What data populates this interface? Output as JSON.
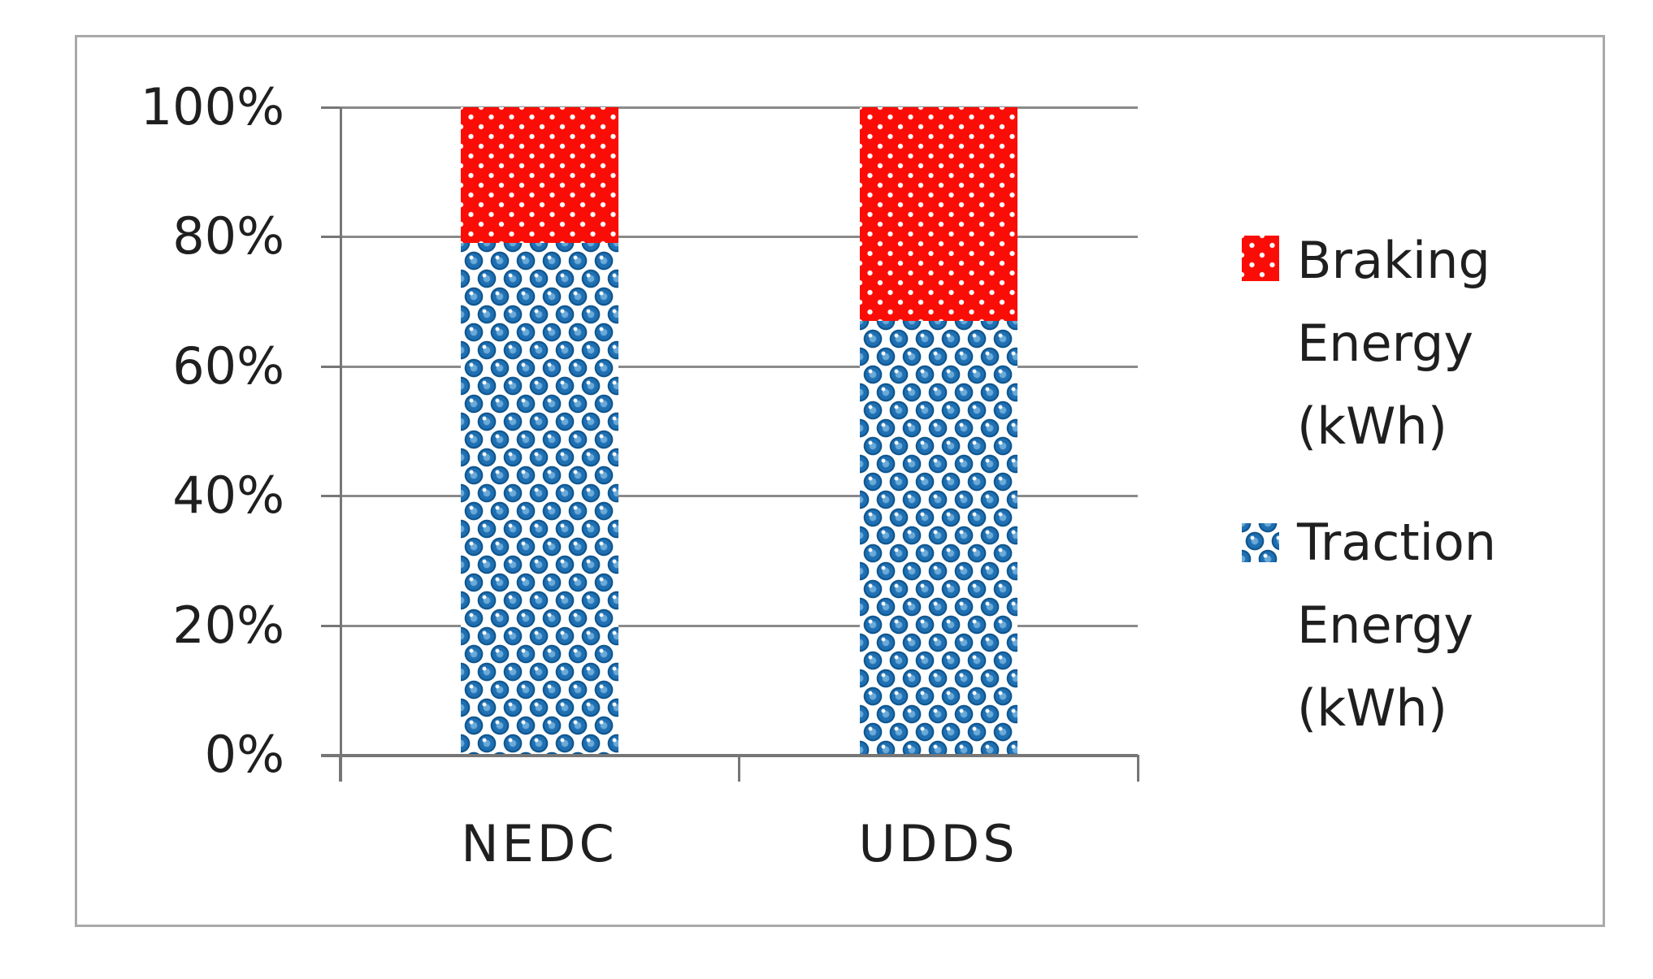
{
  "chart_data": {
    "type": "bar",
    "subtype": "stacked-100-percent",
    "title": "",
    "categories": [
      "NEDC",
      "UDDS"
    ],
    "series": [
      {
        "name": "Traction Energy (kWh)",
        "values": [
          79,
          67
        ],
        "color": "#1f6fb3",
        "pattern": "blue-spheres"
      },
      {
        "name": "Braking Energy (kWh)",
        "values": [
          21,
          33
        ],
        "color": "#fb0d07",
        "pattern": "red-white-dots"
      }
    ],
    "y_axis": {
      "tick_labels_top_to_bottom": [
        "100%",
        "80%",
        "60%",
        "40%",
        "20%",
        "0%"
      ],
      "min": 0,
      "max": 100,
      "unit": "%"
    },
    "x_axis": {
      "tick_labels": [
        "NEDC",
        "UDDS"
      ]
    },
    "grid": true,
    "legend_position": "right",
    "legend": [
      {
        "series": "Braking Energy (kWh)",
        "lines": [
          "Braking",
          "Energy",
          "(kWh)"
        ],
        "pattern": "red-white-dots"
      },
      {
        "series": "Traction Energy (kWh)",
        "lines": [
          "Traction",
          "Energy",
          "(kWh)"
        ],
        "pattern": "blue-spheres"
      }
    ]
  },
  "colors": {
    "braking_red": "#fb0d07",
    "traction_blue": "#1f6fb3",
    "gridline": "#8a8a8a",
    "axis": "#767676",
    "text": "#1f1f1f",
    "border": "#a9a9a9",
    "background": "#ffffff"
  }
}
